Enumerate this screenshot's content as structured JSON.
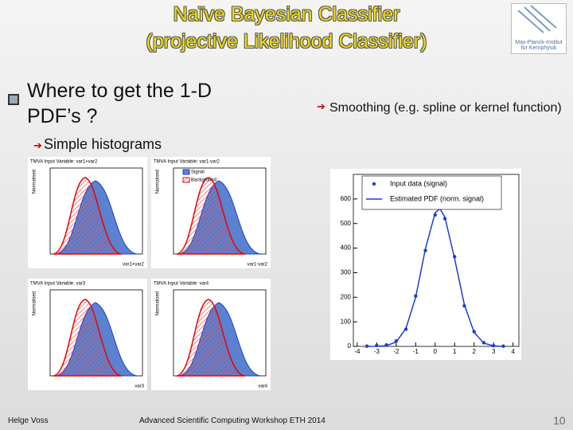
{
  "header": {
    "title": "Naïve Bayesian Classifier",
    "subtitle": "(projective Likelihood Classifier)",
    "logo_line1": "Max-Planck-Institut",
    "logo_line2": "für Kernphysik"
  },
  "bullets": {
    "main": "Where to get the 1-D PDF’s ?",
    "sub": "Simple histograms",
    "right": "Smoothing  (e.g. spline or kernel function)"
  },
  "histograms": [
    {
      "title": "TMVA Input Variable: var1+var2",
      "x_label": "var1+var2",
      "y_label": "Normalised"
    },
    {
      "title": "TMVA Input Variable: var1-var2",
      "x_label": "var1-var2",
      "y_label": "Normalised",
      "legend": [
        "Signal",
        "Background"
      ]
    },
    {
      "title": "TMVA Input Variable: var3",
      "x_label": "var3",
      "y_label": "Normalised"
    },
    {
      "title": "TMVA Input Variable: var4",
      "x_label": "var4",
      "y_label": "Normalised"
    }
  ],
  "chart_data": {
    "type": "scatter",
    "xlim": [
      -4.2,
      4.3
    ],
    "xticks": [
      -4,
      -3,
      -2,
      -1,
      0,
      1,
      2,
      3,
      4
    ],
    "ylim": [
      0,
      700
    ],
    "yticks": [
      0,
      100,
      200,
      300,
      400,
      500,
      600
    ],
    "x": [
      -3.5,
      -3,
      -2.5,
      -2,
      -1.5,
      -1,
      -0.5,
      0,
      0.25,
      0.5,
      1,
      1.5,
      2,
      2.5,
      3,
      3.5
    ],
    "series": [
      {
        "name": "Input data (signal)",
        "color": "#1a3fd0",
        "style": "points",
        "values": [
          1,
          4,
          6,
          22,
          70,
          205,
          390,
          535,
          565,
          520,
          365,
          165,
          60,
          15,
          3,
          1
        ]
      },
      {
        "name": "Estimated PDF (norm. signal)",
        "color": "#1a3fd0",
        "style": "line",
        "values": [
          0,
          0.4,
          3,
          18,
          73,
          200,
          397,
          544,
          560,
          526,
          357,
          170,
          57,
          13,
          2,
          0
        ]
      }
    ]
  },
  "footer": {
    "author": "Helge Voss",
    "event": "Advanced Scientific Computing Workshop ETH 2014",
    "page": "10"
  }
}
